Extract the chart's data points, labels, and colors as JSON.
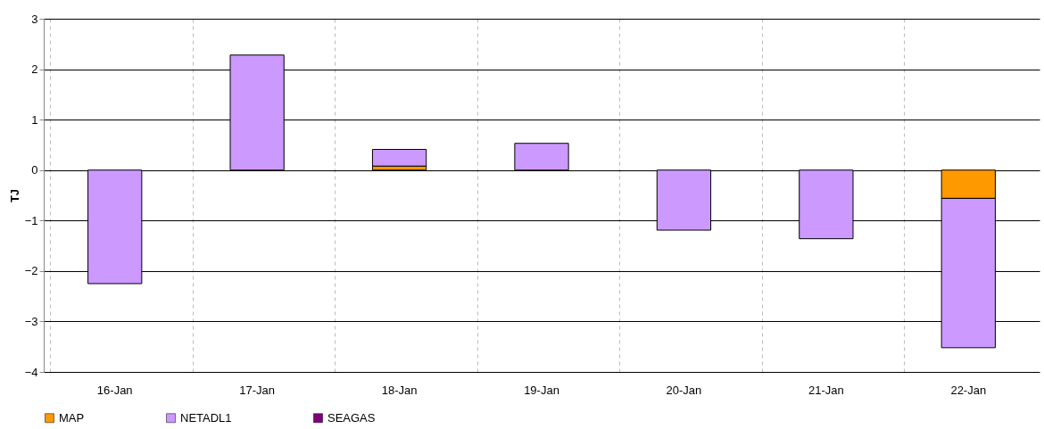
{
  "chart_data": {
    "type": "bar",
    "stacked": true,
    "ylabel": "TJ",
    "categories": [
      "16-Jan",
      "17-Jan",
      "18-Jan",
      "19-Jan",
      "20-Jan",
      "21-Jan",
      "22-Jan"
    ],
    "series": [
      {
        "name": "MAP",
        "color": "#ff9900",
        "values": [
          null,
          null,
          0.08,
          null,
          null,
          null,
          -0.56
        ]
      },
      {
        "name": "NETADL1",
        "color": "#cc99ff",
        "values": [
          -2.25,
          2.28,
          0.33,
          0.53,
          -1.19,
          -1.36,
          -2.96
        ]
      },
      {
        "name": "SEAGAS",
        "color": "#800080",
        "values": [
          null,
          null,
          null,
          null,
          null,
          null,
          null
        ]
      }
    ],
    "ylim": [
      -4,
      3
    ],
    "yticks": [
      -4,
      -3,
      -2,
      -1,
      0,
      1,
      2,
      3
    ],
    "grid": true,
    "legend": "bottom"
  }
}
